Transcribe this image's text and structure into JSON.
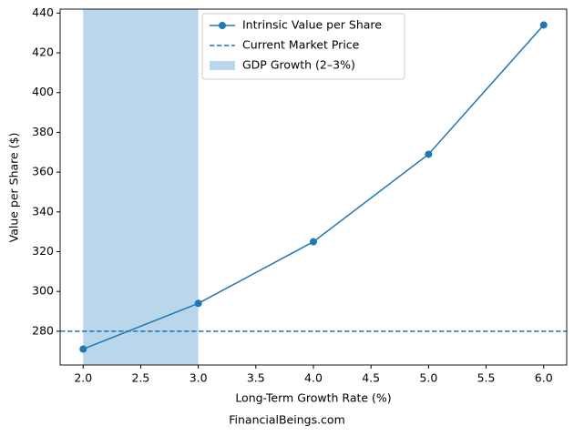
{
  "chart_data": {
    "type": "line",
    "x": [
      2.0,
      3.0,
      4.0,
      5.0,
      6.0
    ],
    "series": [
      {
        "name": "Intrinsic Value per Share",
        "color": "#1f77b4",
        "values": [
          271,
          294,
          325,
          369,
          434
        ]
      }
    ],
    "reference": {
      "name": "Current Market Price",
      "value": 280,
      "color": "#1f77b4"
    },
    "span": {
      "name": "GDP Growth (2–3%)",
      "range": [
        2.0,
        3.0
      ],
      "color": "#bad6ea"
    },
    "xlabel": "Long-Term Growth Rate (%)",
    "ylabel": "Value per Share ($)",
    "footer": "FinancialBeings.com",
    "xlim": [
      1.8,
      6.2
    ],
    "ylim": [
      263,
      442
    ],
    "xticks": [
      {
        "value": 2.0,
        "label": "2.0"
      },
      2.5,
      {
        "value": 3.0,
        "label": "3.0"
      },
      3.5,
      {
        "value": 4.0,
        "label": "4.0"
      },
      4.5,
      {
        "value": 5.0,
        "label": "5.0"
      },
      5.5,
      {
        "value": 6.0,
        "label": "6.0"
      }
    ],
    "yticks": [
      280,
      300,
      320,
      340,
      360,
      380,
      400,
      420,
      440
    ],
    "legend": "upper center"
  }
}
